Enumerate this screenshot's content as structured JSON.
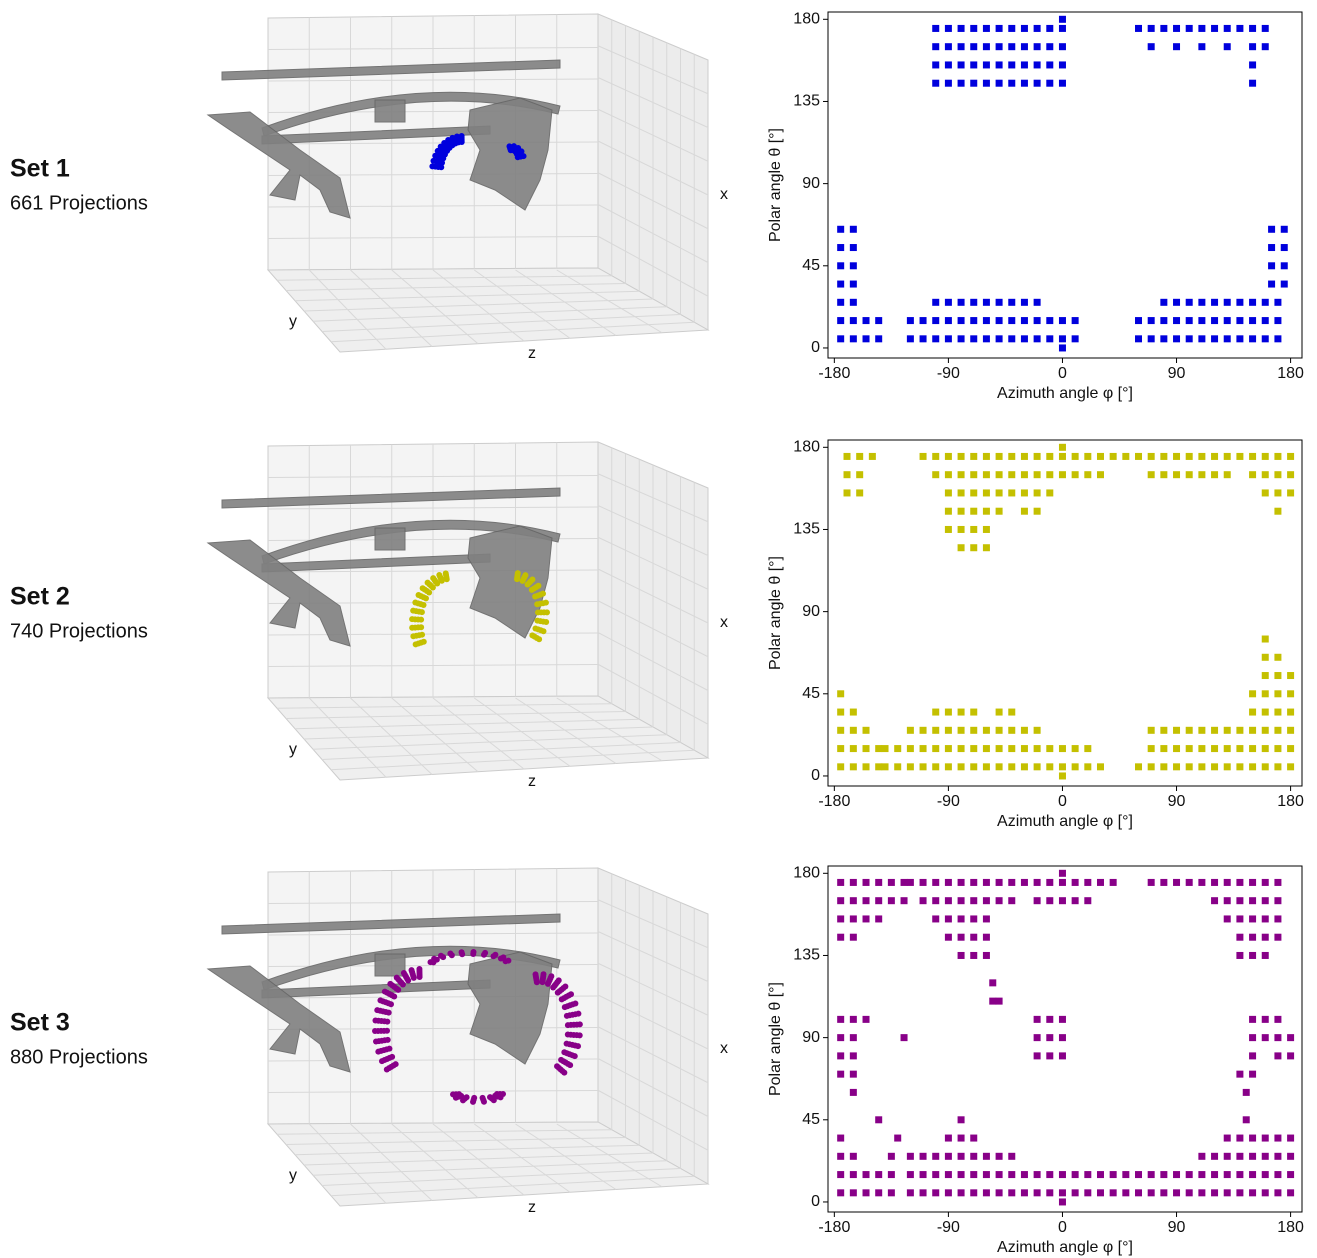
{
  "chart_data": [
    {
      "type": "scatter",
      "set_label": "Set 1",
      "projections_label": "661 Projections",
      "view_axis_labels": [
        "x",
        "y",
        "z"
      ],
      "xlabel": "Azimuth angle φ [°]",
      "ylabel": "Polar angle θ [°]",
      "color": "#0000dd",
      "xlim": [
        -185,
        189
      ],
      "ylim": [
        -5.5,
        184
      ],
      "xticks": [
        -180,
        -90,
        0,
        90,
        180
      ],
      "yticks": [
        0,
        45,
        90,
        135,
        180
      ],
      "x": [
        0,
        -100,
        -90,
        -80,
        -70,
        -60,
        -50,
        -40,
        -30,
        -20,
        -10,
        0,
        60,
        70,
        80,
        90,
        100,
        110,
        120,
        130,
        140,
        150,
        160,
        -100,
        -90,
        -80,
        -70,
        -60,
        -50,
        -40,
        -30,
        -20,
        -10,
        0,
        70,
        90,
        110,
        130,
        150,
        160,
        -100,
        -90,
        -80,
        -70,
        -60,
        -50,
        -40,
        -30,
        -20,
        -10,
        0,
        150,
        -100,
        -90,
        -80,
        -70,
        -60,
        -50,
        -40,
        -30,
        -20,
        -10,
        0,
        150,
        -175,
        -165,
        165,
        175,
        -175,
        -165,
        165,
        175,
        -175,
        -165,
        165,
        175,
        -175,
        -165,
        165,
        175,
        -175,
        -165,
        -100,
        -90,
        -80,
        -70,
        -60,
        -50,
        -40,
        -30,
        -20,
        80,
        90,
        100,
        110,
        120,
        130,
        140,
        150,
        160,
        170,
        -175,
        -165,
        -155,
        -145,
        -120,
        -110,
        -100,
        -90,
        -80,
        -70,
        -60,
        -50,
        -40,
        -30,
        -20,
        -10,
        0,
        10,
        60,
        70,
        80,
        90,
        100,
        110,
        120,
        130,
        140,
        150,
        160,
        170,
        -175,
        -165,
        -155,
        -145,
        -120,
        -110,
        -100,
        -90,
        -80,
        -70,
        -60,
        -50,
        -40,
        -30,
        -20,
        -10,
        0,
        10,
        60,
        70,
        80,
        90,
        100,
        110,
        120,
        130,
        140,
        150,
        160,
        170,
        0
      ],
      "values": [
        180,
        175,
        175,
        175,
        175,
        175,
        175,
        175,
        175,
        175,
        175,
        175,
        175,
        175,
        175,
        175,
        175,
        175,
        175,
        175,
        175,
        175,
        175,
        165,
        165,
        165,
        165,
        165,
        165,
        165,
        165,
        165,
        165,
        165,
        165,
        165,
        165,
        165,
        165,
        165,
        155,
        155,
        155,
        155,
        155,
        155,
        155,
        155,
        155,
        155,
        155,
        155,
        145,
        145,
        145,
        145,
        145,
        145,
        145,
        145,
        145,
        145,
        145,
        145,
        65,
        65,
        65,
        65,
        55,
        55,
        55,
        55,
        45,
        45,
        45,
        45,
        35,
        35,
        35,
        35,
        25,
        25,
        25,
        25,
        25,
        25,
        25,
        25,
        25,
        25,
        25,
        25,
        25,
        25,
        25,
        25,
        25,
        25,
        25,
        25,
        25,
        15,
        15,
        15,
        15,
        15,
        15,
        15,
        15,
        15,
        15,
        15,
        15,
        15,
        15,
        15,
        15,
        15,
        15,
        15,
        15,
        15,
        15,
        15,
        15,
        15,
        15,
        15,
        15,
        15,
        15,
        5,
        5,
        5,
        5,
        5,
        5,
        5,
        5,
        5,
        5,
        5,
        5,
        5,
        5,
        5,
        5,
        5,
        5,
        5,
        5,
        5,
        5,
        5,
        5,
        5,
        5,
        5,
        5,
        5,
        5,
        0
      ]
    },
    {
      "type": "scatter",
      "set_label": "Set 2",
      "projections_label": "740 Projections",
      "view_axis_labels": [
        "x",
        "y",
        "z"
      ],
      "xlabel": "Azimuth angle φ [°]",
      "ylabel": "Polar angle θ [°]",
      "color": "#c4c000",
      "xlim": [
        -185,
        189
      ],
      "ylim": [
        -5.5,
        184
      ],
      "xticks": [
        -180,
        -90,
        0,
        90,
        180
      ],
      "yticks": [
        0,
        45,
        90,
        135,
        180
      ],
      "x": [
        0,
        -170,
        -160,
        -150,
        -110,
        -100,
        -90,
        -80,
        -70,
        -60,
        -50,
        -40,
        -30,
        -20,
        -10,
        0,
        10,
        20,
        30,
        40,
        50,
        60,
        70,
        80,
        90,
        100,
        110,
        120,
        130,
        140,
        150,
        160,
        170,
        180,
        -170,
        -160,
        -100,
        -90,
        -80,
        -70,
        -60,
        -50,
        -40,
        -30,
        -20,
        -10,
        0,
        10,
        20,
        30,
        70,
        80,
        90,
        100,
        110,
        120,
        130,
        150,
        160,
        170,
        180,
        -170,
        -160,
        -90,
        -80,
        -70,
        -60,
        -50,
        -40,
        -30,
        -20,
        -10,
        160,
        170,
        180,
        -90,
        -80,
        -70,
        -60,
        -50,
        -30,
        -20,
        170,
        -90,
        -80,
        -70,
        -60,
        -80,
        -70,
        -60,
        160,
        160,
        170,
        160,
        170,
        180,
        -175,
        150,
        160,
        170,
        180,
        -175,
        -165,
        -100,
        -90,
        -80,
        -70,
        -50,
        -40,
        150,
        160,
        170,
        180,
        -175,
        -165,
        -155,
        -120,
        -110,
        -100,
        -90,
        -80,
        -70,
        -60,
        -50,
        -40,
        -30,
        -20,
        70,
        80,
        90,
        100,
        110,
        120,
        130,
        140,
        150,
        160,
        170,
        180,
        -175,
        -165,
        -155,
        -145,
        -140,
        -130,
        -120,
        -110,
        -100,
        -90,
        -80,
        -70,
        -60,
        -50,
        -40,
        -30,
        -20,
        -10,
        0,
        10,
        20,
        70,
        80,
        90,
        100,
        110,
        120,
        130,
        140,
        150,
        160,
        170,
        180,
        -175,
        -165,
        -155,
        -145,
        -140,
        -130,
        -120,
        -110,
        -100,
        -90,
        -80,
        -70,
        -60,
        -50,
        -40,
        -30,
        -20,
        -10,
        0,
        10,
        20,
        30,
        60,
        70,
        80,
        90,
        100,
        110,
        120,
        130,
        140,
        150,
        160,
        170,
        180,
        0
      ],
      "values": [
        180,
        175,
        175,
        175,
        175,
        175,
        175,
        175,
        175,
        175,
        175,
        175,
        175,
        175,
        175,
        175,
        175,
        175,
        175,
        175,
        175,
        175,
        175,
        175,
        175,
        175,
        175,
        175,
        175,
        175,
        175,
        175,
        175,
        175,
        165,
        165,
        165,
        165,
        165,
        165,
        165,
        165,
        165,
        165,
        165,
        165,
        165,
        165,
        165,
        165,
        165,
        165,
        165,
        165,
        165,
        165,
        165,
        165,
        165,
        165,
        165,
        155,
        155,
        155,
        155,
        155,
        155,
        155,
        155,
        155,
        155,
        155,
        155,
        155,
        155,
        145,
        145,
        145,
        145,
        145,
        145,
        145,
        145,
        135,
        135,
        135,
        135,
        125,
        125,
        125,
        75,
        65,
        65,
        55,
        55,
        55,
        45,
        45,
        45,
        45,
        45,
        35,
        35,
        35,
        35,
        35,
        35,
        35,
        35,
        35,
        35,
        35,
        35,
        25,
        25,
        25,
        25,
        25,
        25,
        25,
        25,
        25,
        25,
        25,
        25,
        25,
        25,
        25,
        25,
        25,
        25,
        25,
        25,
        25,
        25,
        25,
        25,
        25,
        25,
        15,
        15,
        15,
        15,
        15,
        15,
        15,
        15,
        15,
        15,
        15,
        15,
        15,
        15,
        15,
        15,
        15,
        15,
        15,
        15,
        15,
        15,
        15,
        15,
        15,
        15,
        15,
        15,
        15,
        15,
        15,
        15,
        15,
        5,
        5,
        5,
        5,
        5,
        5,
        5,
        5,
        5,
        5,
        5,
        5,
        5,
        5,
        5,
        5,
        5,
        5,
        5,
        5,
        5,
        5,
        5,
        5,
        5,
        5,
        5,
        5,
        5,
        5,
        5,
        5,
        5,
        5,
        5,
        0
      ]
    },
    {
      "type": "scatter",
      "set_label": "Set 3",
      "projections_label": "880 Projections",
      "view_axis_labels": [
        "x",
        "y",
        "z"
      ],
      "xlabel": "Azimuth angle φ [°]",
      "ylabel": "Polar angle θ [°]",
      "color": "#880088",
      "xlim": [
        -185,
        189
      ],
      "ylim": [
        -5.5,
        184
      ],
      "xticks": [
        -180,
        -90,
        0,
        90,
        180
      ],
      "yticks": [
        0,
        45,
        90,
        135,
        180
      ],
      "x": [
        0,
        -175,
        -165,
        -155,
        -145,
        -135,
        -125,
        -120,
        -110,
        -100,
        -90,
        -80,
        -70,
        -60,
        -50,
        -40,
        -30,
        -20,
        -10,
        0,
        10,
        20,
        30,
        40,
        70,
        80,
        90,
        100,
        110,
        120,
        130,
        140,
        150,
        160,
        170,
        -175,
        -165,
        -155,
        -145,
        -135,
        -125,
        -110,
        -100,
        -90,
        -80,
        -70,
        -60,
        -50,
        -40,
        -20,
        -10,
        0,
        10,
        20,
        120,
        130,
        140,
        150,
        160,
        170,
        -175,
        -165,
        -155,
        -145,
        -100,
        -90,
        -80,
        -70,
        -60,
        130,
        140,
        150,
        160,
        170,
        -175,
        -165,
        -90,
        -80,
        -70,
        -60,
        140,
        150,
        160,
        170,
        -80,
        -70,
        -60,
        140,
        150,
        160,
        -55,
        -55,
        -50,
        -175,
        -165,
        -155,
        -20,
        -10,
        0,
        150,
        160,
        170,
        -175,
        -165,
        -125,
        -20,
        -10,
        0,
        150,
        160,
        170,
        180,
        -175,
        -165,
        -20,
        -10,
        0,
        150,
        170,
        180,
        -175,
        -165,
        140,
        150,
        -165,
        145,
        -145,
        -80,
        145,
        -175,
        -130,
        -90,
        -80,
        -70,
        130,
        140,
        150,
        160,
        170,
        180,
        -175,
        -165,
        -135,
        -120,
        -110,
        -100,
        -90,
        -80,
        -70,
        -60,
        -50,
        -40,
        110,
        120,
        130,
        140,
        150,
        160,
        170,
        180,
        -175,
        -165,
        -155,
        -145,
        -135,
        -120,
        -110,
        -100,
        -90,
        -80,
        -70,
        -60,
        -50,
        -40,
        -30,
        -20,
        -10,
        0,
        10,
        20,
        30,
        40,
        50,
        60,
        70,
        80,
        90,
        100,
        110,
        120,
        130,
        140,
        150,
        160,
        170,
        180,
        -175,
        -165,
        -155,
        -145,
        -135,
        -120,
        -110,
        -100,
        -90,
        -80,
        -70,
        -60,
        -50,
        -40,
        -30,
        -20,
        -10,
        0,
        10,
        20,
        30,
        40,
        50,
        60,
        70,
        80,
        90,
        100,
        110,
        120,
        130,
        140,
        150,
        160,
        170,
        180,
        0
      ],
      "values": [
        180,
        175,
        175,
        175,
        175,
        175,
        175,
        175,
        175,
        175,
        175,
        175,
        175,
        175,
        175,
        175,
        175,
        175,
        175,
        175,
        175,
        175,
        175,
        175,
        175,
        175,
        175,
        175,
        175,
        175,
        175,
        175,
        175,
        175,
        175,
        165,
        165,
        165,
        165,
        165,
        165,
        165,
        165,
        165,
        165,
        165,
        165,
        165,
        165,
        165,
        165,
        165,
        165,
        165,
        165,
        165,
        165,
        165,
        165,
        165,
        155,
        155,
        155,
        155,
        155,
        155,
        155,
        155,
        155,
        155,
        155,
        155,
        155,
        155,
        145,
        145,
        145,
        145,
        145,
        145,
        145,
        145,
        145,
        145,
        135,
        135,
        135,
        135,
        135,
        135,
        120,
        110,
        110,
        100,
        100,
        100,
        100,
        100,
        100,
        100,
        100,
        100,
        90,
        90,
        90,
        90,
        90,
        90,
        90,
        90,
        90,
        90,
        80,
        80,
        80,
        80,
        80,
        80,
        80,
        80,
        70,
        70,
        70,
        70,
        60,
        60,
        45,
        45,
        45,
        35,
        35,
        35,
        35,
        35,
        35,
        35,
        35,
        35,
        35,
        35,
        25,
        25,
        25,
        25,
        25,
        25,
        25,
        25,
        25,
        25,
        25,
        25,
        25,
        25,
        25,
        25,
        25,
        25,
        25,
        25,
        15,
        15,
        15,
        15,
        15,
        15,
        15,
        15,
        15,
        15,
        15,
        15,
        15,
        15,
        15,
        15,
        15,
        15,
        15,
        15,
        15,
        15,
        15,
        15,
        15,
        15,
        15,
        15,
        15,
        15,
        15,
        15,
        15,
        15,
        15,
        15,
        5,
        5,
        5,
        5,
        5,
        5,
        5,
        5,
        5,
        5,
        5,
        5,
        5,
        5,
        5,
        5,
        5,
        5,
        5,
        5,
        5,
        5,
        5,
        5,
        5,
        5,
        5,
        5,
        5,
        5,
        5,
        5,
        5,
        5,
        5,
        5,
        0
      ]
    }
  ]
}
